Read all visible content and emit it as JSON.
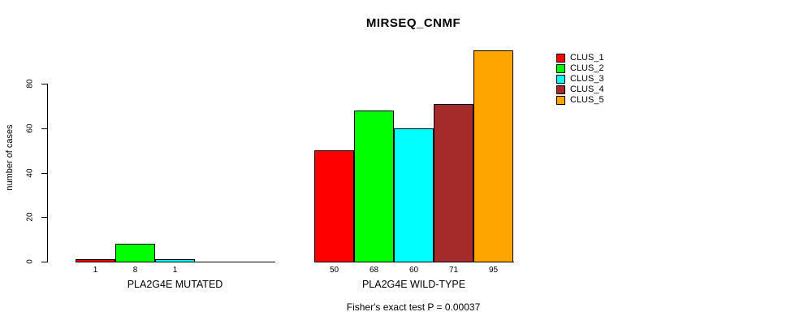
{
  "title": "MIRSEQ_CNMF",
  "footer": "Fisher's exact test P = 0.00037",
  "y_axis": {
    "label": "number of cases",
    "ticks": [
      0,
      20,
      40,
      60,
      80
    ]
  },
  "legend": {
    "items": [
      {
        "label": "CLUS_1",
        "color": "#FF0000"
      },
      {
        "label": "CLUS_2",
        "color": "#00FF00"
      },
      {
        "label": "CLUS_3",
        "color": "#00FFFF"
      },
      {
        "label": "CLUS_4",
        "color": "#A52A2A"
      },
      {
        "label": "CLUS_5",
        "color": "#FFA500"
      }
    ]
  },
  "chart_data": {
    "type": "bar",
    "title": "MIRSEQ_CNMF",
    "ylabel": "number of cases",
    "xlabel": "",
    "yticks": [
      0,
      20,
      40,
      60,
      80
    ],
    "ylim": [
      0,
      95
    ],
    "grid": false,
    "legend_position": "right",
    "series_names": [
      "CLUS_1",
      "CLUS_2",
      "CLUS_3",
      "CLUS_4",
      "CLUS_5"
    ],
    "series_colors": [
      "#FF0000",
      "#00FF00",
      "#00FFFF",
      "#A52A2A",
      "#FFA500"
    ],
    "groups": [
      {
        "label": "PLA2G4E MUTATED",
        "values": [
          1,
          8,
          1,
          0,
          0
        ]
      },
      {
        "label": "PLA2G4E WILD-TYPE",
        "values": [
          50,
          68,
          60,
          71,
          95
        ]
      }
    ],
    "annotation": "Fisher's exact test P = 0.00037"
  }
}
